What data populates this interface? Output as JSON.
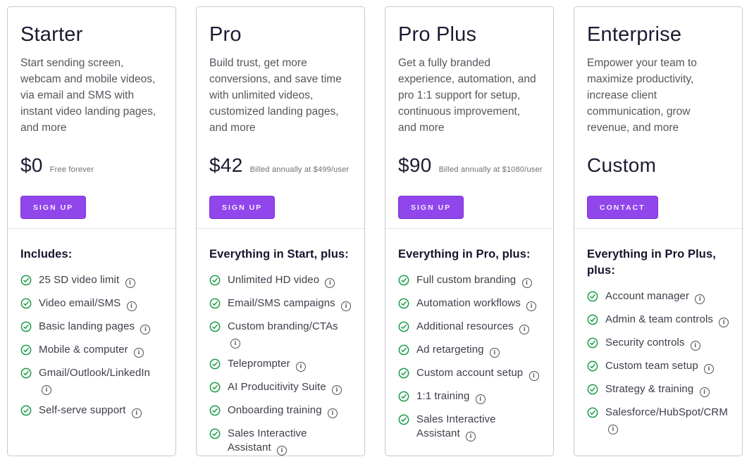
{
  "colors": {
    "accent_purple": "#9146ec",
    "check_green": "#1a9c48",
    "title_ink": "#1b1b32",
    "body_text": "#55555f",
    "card_border": "#c9c9ce"
  },
  "plans": [
    {
      "title": "Starter",
      "description": "Start sending screen, webcam and mobile videos, via email and SMS with instant video landing pages, and more",
      "price": "$0",
      "price_note": "Free forever",
      "button_label": "SIGN UP",
      "features_heading": "Includes:",
      "features": [
        "25 SD video limit",
        "Video email/SMS",
        "Basic landing pages",
        "Mobile & computer",
        "Gmail/Outlook/LinkedIn",
        "Self-serve support"
      ]
    },
    {
      "title": "Pro",
      "description": "Build trust, get more conversions, and save time with unlimited videos, customized landing pages, and more",
      "price": "$42",
      "price_note": "Billed annually at $499/user",
      "button_label": "SIGN UP",
      "features_heading": "Everything in Start, plus:",
      "features": [
        "Unlimited HD video",
        "Email/SMS campaigns",
        "Custom branding/CTAs",
        "Teleprompter",
        "AI Producitivity Suite",
        "Onboarding training",
        "Sales Interactive Assistant"
      ]
    },
    {
      "title": "Pro Plus",
      "description": "Get a fully branded experience, automation, and pro 1:1 support for setup, continuous improvement, and more",
      "price": "$90",
      "price_note": "Billed annually at $1080/user",
      "button_label": "SIGN UP",
      "features_heading": "Everything in Pro, plus:",
      "features": [
        "Full custom branding",
        "Automation workflows",
        "Additional resources",
        "Ad retargeting",
        "Custom account setup",
        "1:1 training",
        "Sales Interactive Assistant"
      ]
    },
    {
      "title": "Enterprise",
      "description": "Empower your team to maximize productivity, increase client communication, grow revenue, and more",
      "price": "Custom",
      "price_note": "",
      "button_label": "CONTACT",
      "features_heading": "Everything in Pro Plus, plus:",
      "features": [
        "Account manager",
        "Admin & team controls",
        "Security controls",
        "Custom team setup",
        "Strategy & training",
        "Salesforce/HubSpot/CRM"
      ]
    }
  ]
}
